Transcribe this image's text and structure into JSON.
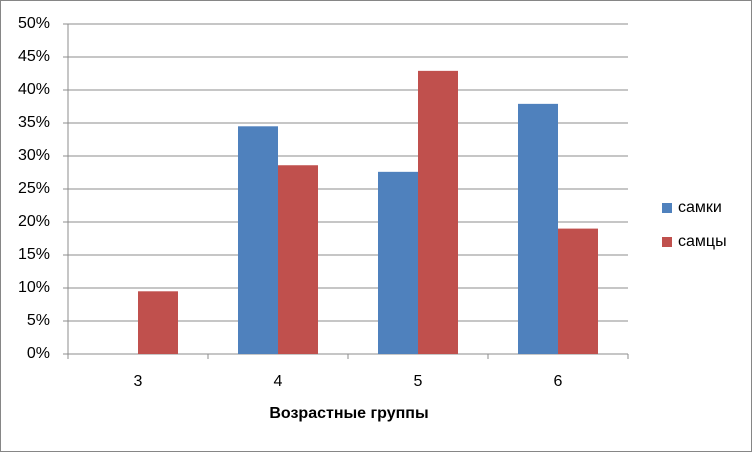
{
  "chart_data": {
    "type": "bar",
    "x_label": "Возрастные группы",
    "categories": [
      "3",
      "4",
      "5",
      "6"
    ],
    "series": [
      {
        "name": "самки",
        "color": "#4f81bd",
        "values": [
          0,
          34.5,
          27.6,
          37.9
        ]
      },
      {
        "name": "самцы",
        "color": "#c0504d",
        "values": [
          9.5,
          28.6,
          42.9,
          19.0
        ]
      }
    ],
    "ylim": [
      0,
      50
    ],
    "yticks": [
      {
        "value": 0,
        "label": "0%"
      },
      {
        "value": 5,
        "label": "5%"
      },
      {
        "value": 10,
        "label": "10%"
      },
      {
        "value": 15,
        "label": "15%"
      },
      {
        "value": 20,
        "label": "20%"
      },
      {
        "value": 25,
        "label": "25%"
      },
      {
        "value": 30,
        "label": "30%"
      },
      {
        "value": 35,
        "label": "35%"
      },
      {
        "value": 40,
        "label": "40%"
      },
      {
        "value": 45,
        "label": "45%"
      },
      {
        "value": 50,
        "label": "50%"
      }
    ],
    "grid": true,
    "legend": "right"
  }
}
